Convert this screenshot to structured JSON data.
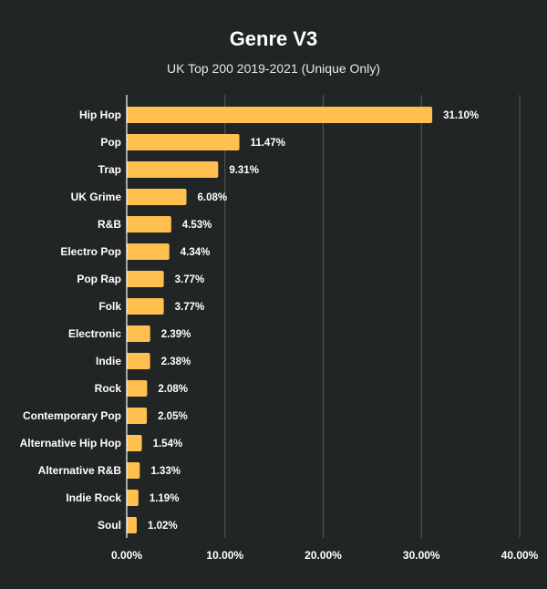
{
  "chart_data": {
    "type": "bar",
    "orientation": "horizontal",
    "title": "Genre V3",
    "subtitle": "UK Top 200 2019-2021 (Unique Only)",
    "categories": [
      "Hip Hop",
      "Pop",
      "Trap",
      "UK Grime",
      "R&B",
      "Electro Pop",
      "Pop Rap",
      "Folk",
      "Electronic",
      "Indie",
      "Rock",
      "Contemporary Pop",
      "Alternative Hip Hop",
      "Alternative R&B",
      "Indie Rock",
      "Soul"
    ],
    "values": [
      31.1,
      11.47,
      9.31,
      6.08,
      4.53,
      4.34,
      3.77,
      3.77,
      2.39,
      2.38,
      2.08,
      2.05,
      1.54,
      1.33,
      1.19,
      1.02
    ],
    "value_labels": [
      "31.10%",
      "11.47%",
      "9.31%",
      "6.08%",
      "4.53%",
      "4.34%",
      "3.77%",
      "3.77%",
      "2.39%",
      "2.38%",
      "2.08%",
      "2.05%",
      "1.54%",
      "1.33%",
      "1.19%",
      "1.02%"
    ],
    "xlim": [
      0,
      40
    ],
    "x_ticks": [
      0,
      10,
      20,
      30,
      40
    ],
    "x_tick_labels": [
      "0.00%",
      "10.00%",
      "20.00%",
      "30.00%",
      "40.00%"
    ],
    "grid": true,
    "bar_color": "#ffc050",
    "background_color": "#222526",
    "grid_color": "#54585a"
  }
}
